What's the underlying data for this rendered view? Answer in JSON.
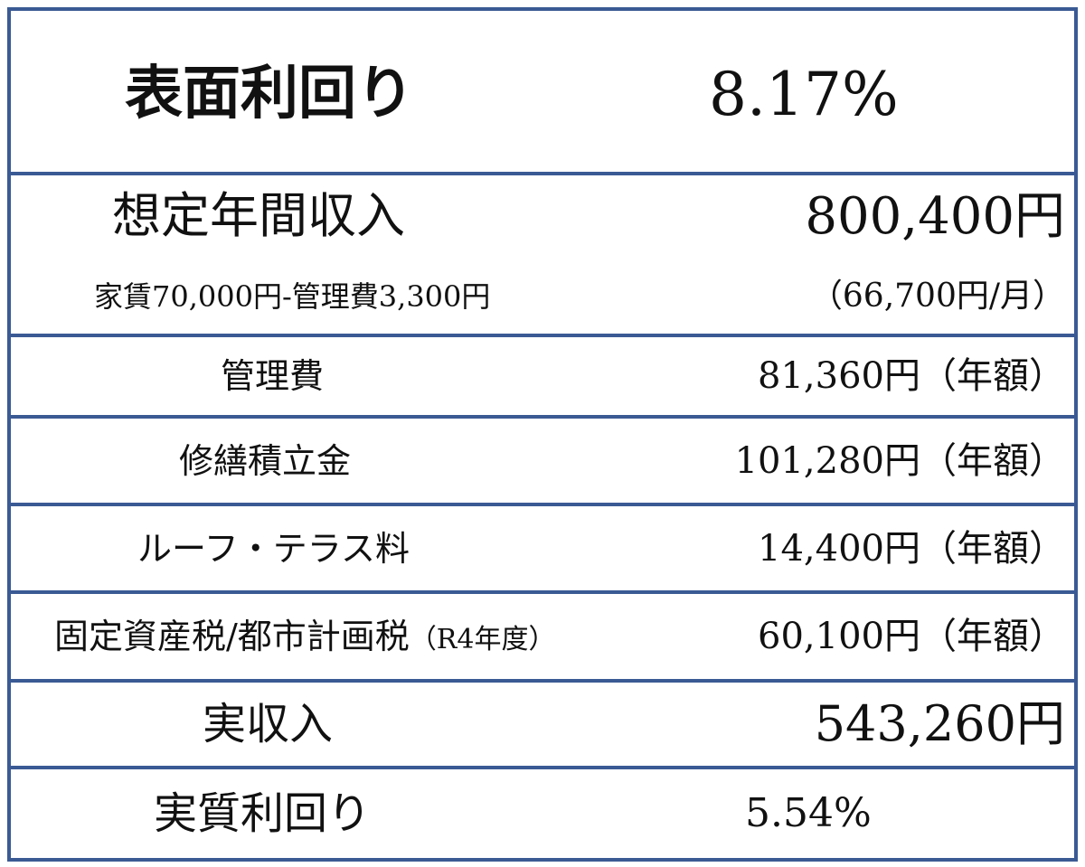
{
  "rows": {
    "gross_yield": {
      "label": "表面利回り",
      "value": "8.17%"
    },
    "annual_income": {
      "label": "想定年間収入",
      "value": "800,400円",
      "sub_label": "家賃70,000円-管理費3,300円",
      "sub_value": "（66,700円/月）"
    },
    "management_fee": {
      "label": "管理費",
      "value": "81,360円（年額）"
    },
    "repair_reserve": {
      "label": "修繕積立金",
      "value": "101,280円（年額）"
    },
    "roof_terrace_fee": {
      "label": "ルーフ・テラス料",
      "value": "14,400円（年額）"
    },
    "property_tax": {
      "label": "固定資産税/都市計画税",
      "label_note": "（R4年度）",
      "value": "60,100円（年額）"
    },
    "net_income": {
      "label": "実収入",
      "value": "543,260円"
    },
    "net_yield": {
      "label": "実質利回り",
      "value": "5.54%"
    }
  },
  "colors": {
    "border": "#3A5A94",
    "background": "#FFFFFF",
    "text": "#111111"
  }
}
